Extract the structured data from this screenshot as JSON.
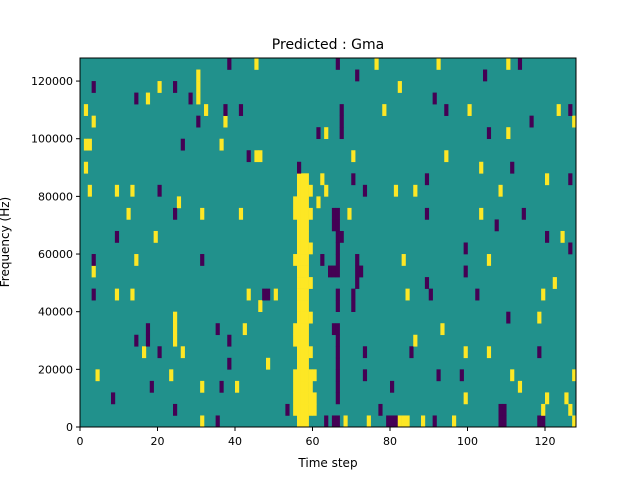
{
  "chart_data": {
    "type": "heatmap",
    "title": "Predicted : Gma",
    "xlabel": "Time step",
    "ylabel": "Frequency (Hz)",
    "xlim": [
      0,
      128
    ],
    "ylim": [
      0,
      128000
    ],
    "xticks": [
      0,
      20,
      40,
      60,
      80,
      100,
      120
    ],
    "yticks": [
      0,
      20000,
      40000,
      60000,
      80000,
      100000,
      120000
    ],
    "xtick_labels": [
      "0",
      "20",
      "40",
      "60",
      "80",
      "100",
      "120"
    ],
    "ytick_labels": [
      "0",
      "20000",
      "40000",
      "60000",
      "80000",
      "100000",
      "120000"
    ],
    "n_time_steps": 128,
    "n_freq_bins": 32,
    "freq_bin_hz": 4000,
    "default_value": 1,
    "colors": {
      "0": "#440154",
      "1": "#21918c",
      "2": "#fde725"
    },
    "band_yellow": {
      "t_start": 56,
      "t_end": 58,
      "r_start": 0,
      "r_end": 21
    },
    "band_yellow_wide": [
      [
        55,
        1
      ],
      [
        59,
        1
      ],
      [
        60,
        1
      ],
      [
        55,
        2
      ],
      [
        59,
        2
      ],
      [
        60,
        2
      ],
      [
        55,
        3
      ],
      [
        59,
        3
      ],
      [
        55,
        4
      ],
      [
        59,
        4
      ],
      [
        60,
        4
      ],
      [
        59,
        6
      ],
      [
        59,
        9
      ],
      [
        59,
        12
      ],
      [
        59,
        15
      ],
      [
        59,
        18
      ],
      [
        59,
        20
      ],
      [
        55,
        19
      ],
      [
        55,
        18
      ],
      [
        55,
        14
      ],
      [
        55,
        8
      ],
      [
        55,
        7
      ],
      [
        56,
        0
      ],
      [
        58,
        0
      ]
    ],
    "cells_yellow": [
      [
        1,
        27
      ],
      [
        3,
        26
      ],
      [
        2,
        24
      ],
      [
        1,
        24
      ],
      [
        1,
        22
      ],
      [
        2,
        20
      ],
      [
        3,
        13
      ],
      [
        4,
        4
      ],
      [
        9,
        20
      ],
      [
        9,
        11
      ],
      [
        12,
        18
      ],
      [
        13,
        20
      ],
      [
        13,
        11
      ],
      [
        14,
        14
      ],
      [
        16,
        6
      ],
      [
        17,
        28
      ],
      [
        19,
        16
      ],
      [
        20,
        29
      ],
      [
        23,
        4
      ],
      [
        24,
        8
      ],
      [
        24,
        7
      ],
      [
        24,
        9
      ],
      [
        25,
        19
      ],
      [
        26,
        6
      ],
      [
        30,
        29
      ],
      [
        30,
        30
      ],
      [
        30,
        28
      ],
      [
        31,
        3
      ],
      [
        31,
        0
      ],
      [
        31,
        18
      ],
      [
        32,
        27
      ],
      [
        36,
        24
      ],
      [
        37,
        26
      ],
      [
        40,
        3
      ],
      [
        41,
        18
      ],
      [
        42,
        8
      ],
      [
        43,
        11
      ],
      [
        45,
        23
      ],
      [
        46,
        23
      ],
      [
        45,
        31
      ],
      [
        46,
        10
      ],
      [
        48,
        5
      ],
      [
        50,
        11
      ],
      [
        63,
        25
      ],
      [
        63,
        20
      ],
      [
        69,
        18
      ],
      [
        70,
        23
      ],
      [
        76,
        31
      ],
      [
        78,
        27
      ],
      [
        82,
        29
      ],
      [
        81,
        20
      ],
      [
        83,
        14
      ],
      [
        84,
        11
      ],
      [
        86,
        7
      ],
      [
        86,
        20
      ],
      [
        82,
        0
      ],
      [
        83,
        0
      ],
      [
        84,
        0
      ],
      [
        88,
        0
      ],
      [
        92,
        31
      ],
      [
        93,
        8
      ],
      [
        94,
        23
      ],
      [
        96,
        0
      ],
      [
        99,
        2
      ],
      [
        99,
        6
      ],
      [
        100,
        27
      ],
      [
        103,
        22
      ],
      [
        103,
        18
      ],
      [
        105,
        6
      ],
      [
        105,
        14
      ],
      [
        108,
        20
      ],
      [
        110,
        25
      ],
      [
        110,
        31
      ],
      [
        111,
        4
      ],
      [
        113,
        3
      ],
      [
        118,
        9
      ],
      [
        119,
        11
      ],
      [
        120,
        21
      ],
      [
        120,
        2
      ],
      [
        119,
        1
      ],
      [
        122,
        12
      ],
      [
        123,
        27
      ],
      [
        124,
        16
      ],
      [
        125,
        2
      ],
      [
        126,
        1
      ],
      [
        127,
        26
      ],
      [
        127,
        4
      ],
      [
        127,
        0
      ],
      [
        61,
        19
      ],
      [
        62,
        21
      ],
      [
        74,
        0
      ],
      [
        68,
        0
      ]
    ],
    "cells_purple": [
      [
        3,
        29
      ],
      [
        3,
        14
      ],
      [
        3,
        11
      ],
      [
        8,
        2
      ],
      [
        9,
        16
      ],
      [
        14,
        28
      ],
      [
        14,
        7
      ],
      [
        17,
        8
      ],
      [
        17,
        7
      ],
      [
        18,
        3
      ],
      [
        20,
        20
      ],
      [
        20,
        6
      ],
      [
        24,
        1
      ],
      [
        24,
        29
      ],
      [
        24,
        18
      ],
      [
        26,
        24
      ],
      [
        28,
        28
      ],
      [
        30,
        26
      ],
      [
        31,
        14
      ],
      [
        35,
        8
      ],
      [
        35,
        0
      ],
      [
        36,
        3
      ],
      [
        37,
        27
      ],
      [
        38,
        7
      ],
      [
        38,
        5
      ],
      [
        38,
        31
      ],
      [
        41,
        27
      ],
      [
        43,
        23
      ],
      [
        47,
        11
      ],
      [
        48,
        11
      ],
      [
        53,
        1
      ],
      [
        56,
        22
      ],
      [
        61,
        25
      ],
      [
        66,
        31
      ],
      [
        65,
        18
      ],
      [
        66,
        18
      ],
      [
        65,
        17
      ],
      [
        66,
        17
      ],
      [
        66,
        16
      ],
      [
        67,
        16
      ],
      [
        66,
        15
      ],
      [
        66,
        14
      ],
      [
        65,
        13
      ],
      [
        66,
        13
      ],
      [
        66,
        11
      ],
      [
        66,
        10
      ],
      [
        65,
        8
      ],
      [
        66,
        8
      ],
      [
        66,
        7
      ],
      [
        66,
        6
      ],
      [
        66,
        5
      ],
      [
        66,
        4
      ],
      [
        66,
        3
      ],
      [
        66,
        2
      ],
      [
        65,
        0
      ],
      [
        66,
        0
      ],
      [
        63,
        0
      ],
      [
        64,
        13
      ],
      [
        62,
        14
      ],
      [
        71,
        13
      ],
      [
        72,
        13
      ],
      [
        71,
        12
      ],
      [
        71,
        14
      ],
      [
        70,
        10
      ],
      [
        70,
        11
      ],
      [
        73,
        6
      ],
      [
        73,
        20
      ],
      [
        73,
        4
      ],
      [
        71,
        30
      ],
      [
        77,
        1
      ],
      [
        80,
        3
      ],
      [
        79,
        0
      ],
      [
        80,
        0
      ],
      [
        81,
        0
      ],
      [
        89,
        21
      ],
      [
        89,
        18
      ],
      [
        89,
        12
      ],
      [
        90,
        11
      ],
      [
        85,
        6
      ],
      [
        91,
        0
      ],
      [
        91,
        28
      ],
      [
        92,
        4
      ],
      [
        94,
        27
      ],
      [
        98,
        4
      ],
      [
        99,
        15
      ],
      [
        99,
        13
      ],
      [
        102,
        11
      ],
      [
        104,
        30
      ],
      [
        105,
        25
      ],
      [
        107,
        17
      ],
      [
        108,
        1
      ],
      [
        109,
        1
      ],
      [
        108,
        0
      ],
      [
        109,
        0
      ],
      [
        110,
        9
      ],
      [
        111,
        22
      ],
      [
        113,
        31
      ],
      [
        114,
        18
      ],
      [
        116,
        26
      ],
      [
        118,
        6
      ],
      [
        120,
        16
      ],
      [
        126,
        15
      ],
      [
        126,
        21
      ],
      [
        126,
        27
      ],
      [
        118,
        0
      ],
      [
        119,
        0
      ],
      [
        70,
        21
      ],
      [
        67,
        25
      ],
      [
        67,
        26
      ],
      [
        67,
        27
      ]
    ]
  }
}
